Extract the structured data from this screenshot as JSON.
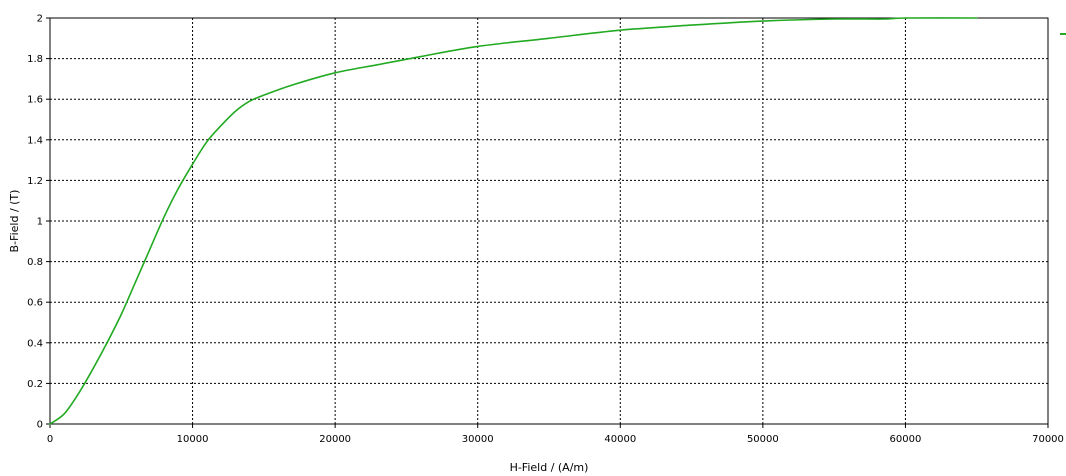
{
  "chart_data": {
    "type": "line",
    "title": "",
    "xlabel": "H-Field / (A/m)",
    "ylabel": "B-Field / (T)",
    "xlim": [
      0,
      70000
    ],
    "ylim": [
      0,
      2
    ],
    "x_ticks": [
      0,
      10000,
      20000,
      30000,
      40000,
      50000,
      60000,
      70000
    ],
    "x_tick_labels": [
      "0",
      "10000",
      "20000",
      "30000",
      "40000",
      "50000",
      "60000",
      "70000"
    ],
    "y_ticks": [
      0,
      0.2,
      0.4,
      0.6,
      0.8,
      1,
      1.2,
      1.4,
      1.6,
      1.8,
      2
    ],
    "y_tick_labels": [
      "0",
      "0.2",
      "0.4",
      "0.6",
      "0.8",
      "1",
      "1.2",
      "1.4",
      "1.6",
      "1.8",
      "2"
    ],
    "grid": true,
    "legend": "right",
    "series": [
      {
        "color": "#22aa22",
        "x": [
          0,
          1000,
          2000,
          3000,
          4000,
          5000,
          6000,
          7000,
          8000,
          9000,
          10000,
          11000,
          12000,
          13000,
          14000,
          15000,
          17000,
          20000,
          23000,
          26000,
          30000,
          35000,
          40000,
          45000,
          50000,
          55000,
          58500,
          60000,
          65000
        ],
        "y": [
          0,
          0.05,
          0.15,
          0.27,
          0.4,
          0.54,
          0.7,
          0.86,
          1.02,
          1.16,
          1.28,
          1.39,
          1.47,
          1.54,
          1.59,
          1.62,
          1.67,
          1.73,
          1.77,
          1.81,
          1.86,
          1.9,
          1.94,
          1.965,
          1.985,
          1.995,
          1.995,
          2.0,
          2.0
        ]
      }
    ]
  }
}
